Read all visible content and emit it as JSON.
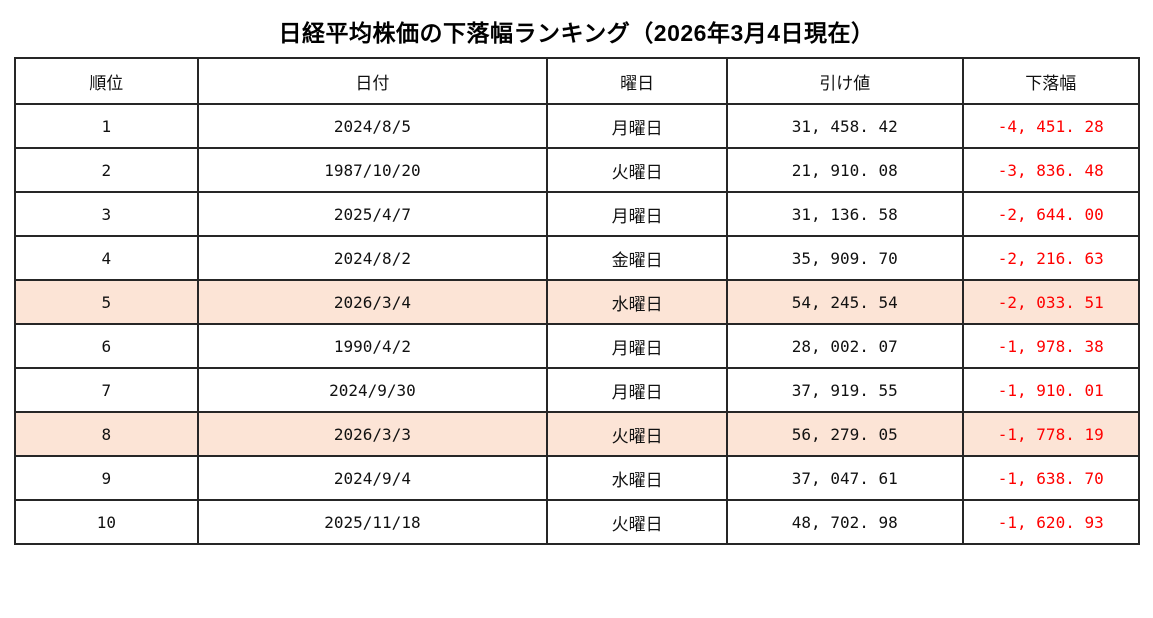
{
  "title": "日経平均株価の下落幅ランキング（2026年3月4日現在）",
  "colors": {
    "highlight_row_bg": "#fce4d6",
    "decline_text": "#ff0000",
    "border": "#262626",
    "text": "#111111"
  },
  "table": {
    "headers": [
      "順位",
      "日付",
      "曜日",
      "引け値",
      "下落幅"
    ],
    "rows": [
      {
        "rank": "1",
        "date": "2024/8/5",
        "weekday": "月曜日",
        "close": "31, 458. 42",
        "decline": "-4, 451. 28",
        "highlighted": false
      },
      {
        "rank": "2",
        "date": "1987/10/20",
        "weekday": "火曜日",
        "close": "21, 910. 08",
        "decline": "-3, 836. 48",
        "highlighted": false
      },
      {
        "rank": "3",
        "date": "2025/4/7",
        "weekday": "月曜日",
        "close": "31, 136. 58",
        "decline": "-2, 644. 00",
        "highlighted": false
      },
      {
        "rank": "4",
        "date": "2024/8/2",
        "weekday": "金曜日",
        "close": "35, 909. 70",
        "decline": "-2, 216. 63",
        "highlighted": false
      },
      {
        "rank": "5",
        "date": "2026/3/4",
        "weekday": "水曜日",
        "close": "54, 245. 54",
        "decline": "-2, 033. 51",
        "highlighted": true
      },
      {
        "rank": "6",
        "date": "1990/4/2",
        "weekday": "月曜日",
        "close": "28, 002. 07",
        "decline": "-1, 978. 38",
        "highlighted": false
      },
      {
        "rank": "7",
        "date": "2024/9/30",
        "weekday": "月曜日",
        "close": "37, 919. 55",
        "decline": "-1, 910. 01",
        "highlighted": false
      },
      {
        "rank": "8",
        "date": "2026/3/3",
        "weekday": "火曜日",
        "close": "56, 279. 05",
        "decline": "-1, 778. 19",
        "highlighted": true
      },
      {
        "rank": "9",
        "date": "2024/9/4",
        "weekday": "水曜日",
        "close": "37, 047. 61",
        "decline": "-1, 638. 70",
        "highlighted": false
      },
      {
        "rank": "10",
        "date": "2025/11/18",
        "weekday": "火曜日",
        "close": "48, 702. 98",
        "decline": "-1, 620. 93",
        "highlighted": false
      }
    ]
  },
  "chart_data": {
    "type": "table",
    "title": "日経平均株価の下落幅ランキング（2026年3月4日現在）",
    "columns": [
      "順位",
      "日付",
      "曜日",
      "引け値",
      "下落幅"
    ],
    "rows": [
      [
        1,
        "2024/8/5",
        "月曜日",
        31458.42,
        -4451.28
      ],
      [
        2,
        "1987/10/20",
        "火曜日",
        21910.08,
        -3836.48
      ],
      [
        3,
        "2025/4/7",
        "月曜日",
        31136.58,
        -2644.0
      ],
      [
        4,
        "2024/8/2",
        "金曜日",
        35909.7,
        -2216.63
      ],
      [
        5,
        "2026/3/4",
        "水曜日",
        54245.54,
        -2033.51
      ],
      [
        6,
        "1990/4/2",
        "月曜日",
        28002.07,
        -1978.38
      ],
      [
        7,
        "2024/9/30",
        "月曜日",
        37919.55,
        -1910.01
      ],
      [
        8,
        "2026/3/3",
        "火曜日",
        56279.05,
        -1778.19
      ],
      [
        9,
        "2024/9/4",
        "水曜日",
        37047.61,
        -1638.7
      ],
      [
        10,
        "2025/11/18",
        "火曜日",
        48702.98,
        -1620.93
      ]
    ],
    "highlighted_rank_rows": [
      5,
      8
    ],
    "notes_layout": "decline column text red; highlighted rows light peach background; all cells center-aligned; dark 2px grid"
  }
}
